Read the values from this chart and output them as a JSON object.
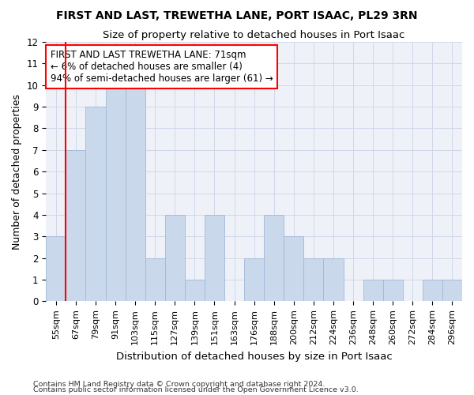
{
  "title1": "FIRST AND LAST, TREWETHA LANE, PORT ISAAC, PL29 3RN",
  "title2": "Size of property relative to detached houses in Port Isaac",
  "xlabel": "Distribution of detached houses by size in Port Isaac",
  "ylabel": "Number of detached properties",
  "categories": [
    "55sqm",
    "67sqm",
    "79sqm",
    "91sqm",
    "103sqm",
    "115sqm",
    "127sqm",
    "139sqm",
    "151sqm",
    "163sqm",
    "176sqm",
    "188sqm",
    "200sqm",
    "212sqm",
    "224sqm",
    "236sqm",
    "248sqm",
    "260sqm",
    "272sqm",
    "284sqm",
    "296sqm"
  ],
  "values": [
    3,
    7,
    9,
    10,
    10,
    2,
    4,
    1,
    4,
    0,
    2,
    4,
    3,
    2,
    2,
    0,
    1,
    1,
    0,
    1,
    1
  ],
  "bar_color": "#c9d9eb",
  "bar_edge_color": "#a0b8d8",
  "ylim": [
    0,
    12
  ],
  "yticks": [
    0,
    1,
    2,
    3,
    4,
    5,
    6,
    7,
    8,
    9,
    10,
    11,
    12
  ],
  "red_line_bin_index": 1,
  "annotation_text": "FIRST AND LAST TREWETHA LANE: 71sqm\n← 6% of detached houses are smaller (4)\n94% of semi-detached houses are larger (61) →",
  "footer1": "Contains HM Land Registry data © Crown copyright and database right 2024.",
  "footer2": "Contains public sector information licensed under the Open Government Licence v3.0.",
  "grid_color": "#d0d8e8",
  "background_color": "#eef2f8"
}
